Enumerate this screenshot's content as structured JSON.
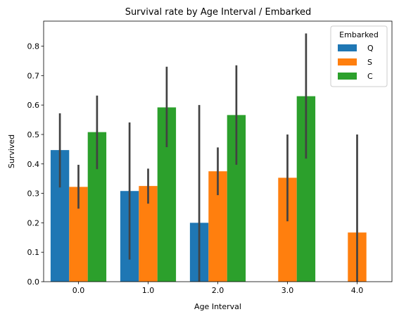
{
  "chart_data": {
    "type": "bar",
    "title": "Survival rate by Age Interval / Embarked",
    "xlabel": "Age Interval",
    "ylabel": "Survived",
    "categories": [
      "0.0",
      "1.0",
      "2.0",
      "3.0",
      "4.0"
    ],
    "ylim": [
      0,
      0.885
    ],
    "yticks": [
      "0.0",
      "0.1",
      "0.2",
      "0.3",
      "0.4",
      "0.5",
      "0.6",
      "0.7",
      "0.8"
    ],
    "legend": {
      "title": "Embarked",
      "position": "upper right"
    },
    "grid": false,
    "series": [
      {
        "name": "Q",
        "color": "#1f77b4",
        "values": [
          0.447,
          0.308,
          0.2,
          null,
          null
        ],
        "ci": [
          [
            0.32,
            0.572
          ],
          [
            0.075,
            0.541
          ],
          [
            0.0,
            0.6
          ],
          null,
          null
        ]
      },
      {
        "name": "S",
        "color": "#ff7f0e",
        "values": [
          0.322,
          0.325,
          0.375,
          0.353,
          0.167
        ],
        "ci": [
          [
            0.248,
            0.397
          ],
          [
            0.265,
            0.384
          ],
          [
            0.294,
            0.456
          ],
          [
            0.205,
            0.5
          ],
          [
            0.0,
            0.5
          ]
        ]
      },
      {
        "name": "C",
        "color": "#2ca02c",
        "values": [
          0.508,
          0.592,
          0.566,
          0.63,
          null
        ],
        "ci": [
          [
            0.382,
            0.632
          ],
          [
            0.457,
            0.73
          ],
          [
            0.397,
            0.735
          ],
          [
            0.418,
            0.843
          ],
          null
        ]
      }
    ]
  }
}
